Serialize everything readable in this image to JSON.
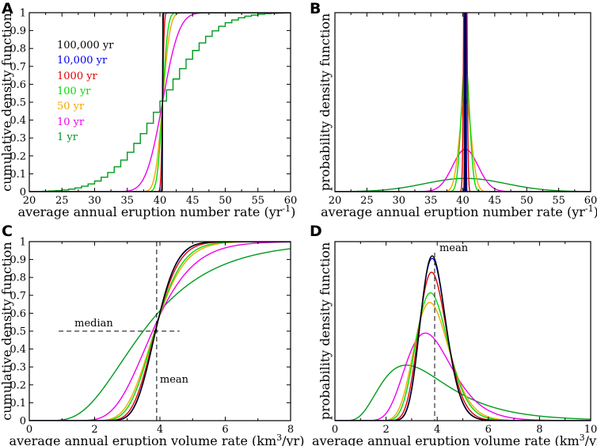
{
  "colors": {
    "100000": "#000000",
    "10000": "#0000ee",
    "1000": "#e00000",
    "100": "#00dd00",
    "50": "#f0a800",
    "10": "#ee00ee",
    "1": "#009a1e"
  },
  "legend": {
    "items": [
      {
        "label": "100,000 yr",
        "key": "100000"
      },
      {
        "label": "10,000 yr",
        "key": "10000"
      },
      {
        "label": "1000 yr",
        "key": "1000"
      },
      {
        "label": "100 yr",
        "key": "100"
      },
      {
        "label": "50 yr",
        "key": "50"
      },
      {
        "label": "10 yr",
        "key": "10"
      },
      {
        "label": "1 yr",
        "key": "1"
      }
    ]
  },
  "chart_data": [
    {
      "panel": "A",
      "type": "line",
      "xlabel": "average annual eruption number rate (yr",
      "xlabel_sup": "-1",
      "xlabel_end": ")",
      "ylabel": "cumulative density function",
      "xlim": [
        20,
        60
      ],
      "ylim": [
        0,
        1
      ],
      "xticks": [
        "20",
        "25",
        "30",
        "35",
        "40",
        "45",
        "50",
        "55",
        "60"
      ],
      "yticks": [
        "0",
        "0.1",
        "0.2",
        "0.3",
        "0.4",
        "0.5",
        "0.6",
        "0.7",
        "0.8",
        "0.9",
        "1"
      ],
      "distribution": "number",
      "mean": 40.4,
      "series": [
        {
          "name": "100,000 yr",
          "key": "100000",
          "sd": 0.02
        },
        {
          "name": "10,000 yr",
          "key": "10000",
          "sd": 0.064
        },
        {
          "name": "1000 yr",
          "key": "1000",
          "sd": 0.2
        },
        {
          "name": "100 yr",
          "key": "100",
          "sd": 0.64
        },
        {
          "name": "50 yr",
          "key": "50",
          "sd": 0.9
        },
        {
          "name": "10 yr",
          "key": "10",
          "sd": 2.0
        },
        {
          "name": "1 yr",
          "key": "1",
          "sd": 6.36,
          "step": true
        }
      ]
    },
    {
      "panel": "B",
      "type": "line",
      "xlabel": "average annual eruption number rate (yr",
      "xlabel_sup": "-1",
      "xlabel_end": ")",
      "ylabel": "probability density function",
      "xlim": [
        20,
        60
      ],
      "xticks": [
        "20",
        "25",
        "30",
        "35",
        "40",
        "45",
        "50",
        "55",
        "60"
      ],
      "distribution": "number",
      "mean": 40.4,
      "series": [
        {
          "name": "100,000 yr",
          "key": "100000",
          "sd": 0.02
        },
        {
          "name": "10,000 yr",
          "key": "10000",
          "sd": 0.064
        },
        {
          "name": "1000 yr",
          "key": "1000",
          "sd": 0.2
        },
        {
          "name": "100 yr",
          "key": "100",
          "sd": 0.64
        },
        {
          "name": "50 yr",
          "key": "50",
          "sd": 0.9
        },
        {
          "name": "10 yr",
          "key": "10",
          "sd": 2.0
        },
        {
          "name": "1 yr",
          "key": "1",
          "sd": 6.36
        }
      ]
    },
    {
      "panel": "C",
      "type": "line",
      "xlabel": "average annual eruption volume rate (km",
      "xlabel_sup": "3",
      "xlabel_end": "/yr)",
      "ylabel": "cumulative density function",
      "xlim": [
        0,
        8
      ],
      "ylim": [
        0,
        1
      ],
      "xticks": [
        "0",
        "2",
        "4",
        "6",
        "8"
      ],
      "yticks": [
        "0",
        "0.1",
        "0.2",
        "0.3",
        "0.4",
        "0.5",
        "0.6",
        "0.7",
        "0.8",
        "0.9",
        "1"
      ],
      "distribution": "volume",
      "mean": 3.9,
      "median_line": {
        "label": "median",
        "y": 0.5,
        "x_from": 0.9,
        "x_to": 4.6
      },
      "mean_line": {
        "label": "mean",
        "x": 3.9
      },
      "series": [
        {
          "name": "100,000 yr",
          "key": "100000",
          "cv": 0.13
        },
        {
          "name": "10,000 yr",
          "key": "10000",
          "cv": 0.132
        },
        {
          "name": "1000 yr",
          "key": "1000",
          "cv": 0.145
        },
        {
          "name": "100 yr",
          "key": "100",
          "cv": 0.17
        },
        {
          "name": "50 yr",
          "key": "50",
          "cv": 0.185
        },
        {
          "name": "10 yr",
          "key": "10",
          "cv": 0.26
        },
        {
          "name": "1 yr",
          "key": "1",
          "cv": 0.5
        }
      ]
    },
    {
      "panel": "D",
      "type": "line",
      "xlabel": "average annual eruption volume rate (km",
      "xlabel_sup": "3",
      "xlabel_end": "/yr)",
      "ylabel": "probability density function",
      "xlim": [
        0,
        10
      ],
      "xticks": [
        "0",
        "2",
        "4",
        "6",
        "8",
        "10"
      ],
      "distribution": "volume",
      "mean": 3.9,
      "mean_line": {
        "label": "mean",
        "x": 3.9
      },
      "series": [
        {
          "name": "100,000 yr",
          "key": "100000",
          "cv": 0.13
        },
        {
          "name": "10,000 yr",
          "key": "10000",
          "cv": 0.132
        },
        {
          "name": "1000 yr",
          "key": "1000",
          "cv": 0.145
        },
        {
          "name": "100 yr",
          "key": "100",
          "cv": 0.17
        },
        {
          "name": "50 yr",
          "key": "50",
          "cv": 0.185
        },
        {
          "name": "10 yr",
          "key": "10",
          "cv": 0.26
        },
        {
          "name": "1 yr",
          "key": "1",
          "cv": 0.5
        }
      ]
    }
  ]
}
